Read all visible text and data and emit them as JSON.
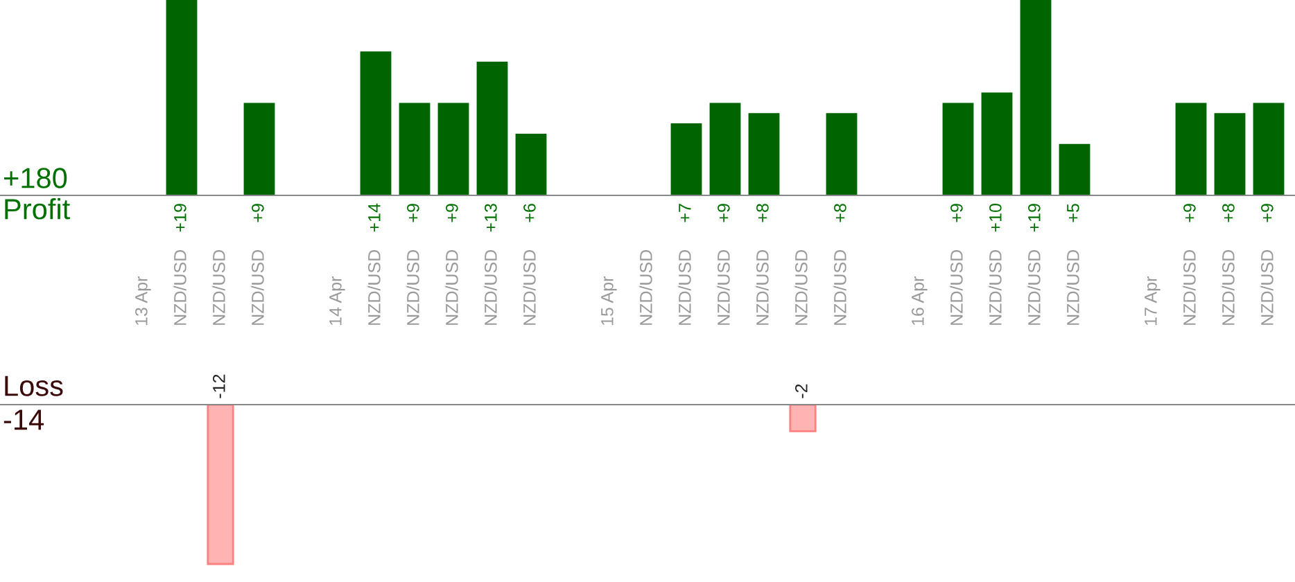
{
  "chart_data": [
    {
      "type": "bar",
      "ylabel": "Profit",
      "annotations": [
        "+180"
      ],
      "categories": [
        "13 Apr",
        "NZD/USD",
        "NZD/USD",
        "NZD/USD",
        null,
        "14 Apr",
        "NZD/USD",
        "NZD/USD",
        "NZD/USD",
        "NZD/USD",
        "NZD/USD",
        null,
        "15 Apr",
        "NZD/USD",
        "NZD/USD",
        "NZD/USD",
        "NZD/USD",
        "NZD/USD",
        "NZD/USD",
        null,
        "16 Apr",
        "NZD/USD",
        "NZD/USD",
        "NZD/USD",
        "NZD/USD",
        null,
        "17 Apr",
        "NZD/USD",
        "NZD/USD",
        "NZD/USD"
      ],
      "series": [
        {
          "color": "#006400",
          "values": [
            null,
            19,
            null,
            9,
            null,
            null,
            14,
            9,
            9,
            13,
            6,
            null,
            null,
            null,
            7,
            9,
            8,
            null,
            8,
            null,
            null,
            9,
            10,
            19,
            5,
            null,
            null,
            9,
            8,
            9
          ],
          "value_labels": [
            null,
            "+19",
            null,
            "+9",
            null,
            null,
            "+14",
            "+9",
            "+9",
            "+13",
            "+6",
            null,
            null,
            null,
            "+7",
            "+9",
            "+8",
            null,
            "+8",
            null,
            null,
            "+9",
            "+10",
            "+19",
            "+5",
            null,
            null,
            "+9",
            "+8",
            "+9"
          ]
        }
      ]
    },
    {
      "type": "bar",
      "ylabel": "Loss",
      "annotations": [
        "-14"
      ],
      "categories": [
        null,
        null,
        null,
        null,
        null,
        null,
        null,
        null,
        null,
        null,
        null,
        null,
        null,
        null,
        null,
        null,
        null,
        null,
        null,
        null,
        null,
        null,
        null,
        null,
        null,
        null,
        null,
        null,
        null,
        null
      ],
      "series": [
        {
          "color": "#ffb3b3",
          "values": [
            null,
            null,
            -12,
            null,
            null,
            null,
            null,
            null,
            null,
            null,
            null,
            null,
            null,
            null,
            null,
            null,
            null,
            -2,
            null,
            null,
            null,
            null,
            null,
            null,
            null,
            null,
            null,
            null,
            null,
            null
          ],
          "value_labels": [
            null,
            null,
            "-12",
            null,
            null,
            null,
            null,
            null,
            null,
            null,
            null,
            null,
            null,
            null,
            null,
            null,
            null,
            "-2",
            null,
            null,
            null,
            null,
            null,
            null,
            null,
            null,
            null,
            null,
            null,
            null
          ]
        }
      ]
    }
  ]
}
